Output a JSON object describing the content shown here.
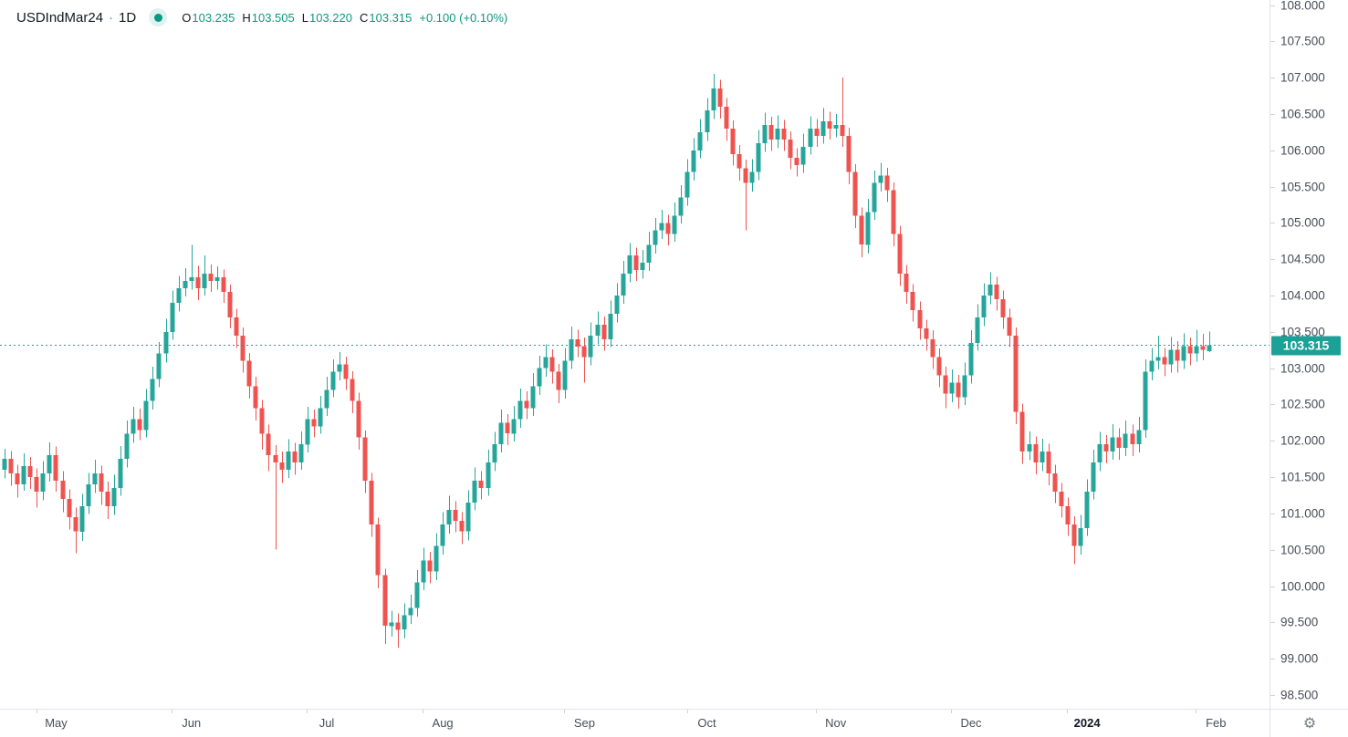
{
  "header": {
    "symbol": "USDIndMar24",
    "separator": "·",
    "timeframe": "1D",
    "ohlc": {
      "o_label": "O",
      "o": "103.235",
      "h_label": "H",
      "h": "103.505",
      "l_label": "L",
      "l": "103.220",
      "c_label": "C",
      "c": "103.315",
      "change": "+0.100 (+0.10%)"
    }
  },
  "colors": {
    "up": "#26a69a",
    "down": "#ef5350",
    "accent_teal_text": "#089981",
    "last_price_bg": "#1ca196",
    "axis_text": "#4a4e59",
    "title_text": "#131722",
    "border": "#e0e3eb"
  },
  "corner": {
    "settings_icon": "⚙"
  },
  "chart_data": {
    "type": "candlestick",
    "symbol": "USDIndMar24",
    "interval": "1D",
    "up_color": "#26a69a",
    "down_color": "#ef5350",
    "grid": "off",
    "ylim": [
      98.31,
      108.07
    ],
    "last_price": 103.315,
    "last_price_label": "103.315",
    "y_ticks": [
      "108.000",
      "107.500",
      "107.000",
      "106.500",
      "106.000",
      "105.500",
      "105.000",
      "104.500",
      "104.000",
      "103.500",
      "103.000",
      "102.500",
      "102.000",
      "101.500",
      "101.000",
      "100.500",
      "100.000",
      "99.500",
      "99.000",
      "98.500"
    ],
    "x_ticks": [
      {
        "label": "May",
        "i": 8,
        "major": false
      },
      {
        "label": "Jun",
        "i": 29,
        "major": false
      },
      {
        "label": "Jul",
        "i": 50,
        "major": false
      },
      {
        "label": "Aug",
        "i": 68,
        "major": false
      },
      {
        "label": "Sep",
        "i": 90,
        "major": false
      },
      {
        "label": "Oct",
        "i": 109,
        "major": false
      },
      {
        "label": "Nov",
        "i": 129,
        "major": false
      },
      {
        "label": "Dec",
        "i": 150,
        "major": false
      },
      {
        "label": "2024",
        "i": 168,
        "major": true
      },
      {
        "label": "Feb",
        "i": 188,
        "major": false
      }
    ],
    "candles": [
      [
        101.6,
        101.89,
        101.48,
        101.75
      ],
      [
        101.75,
        101.86,
        101.38,
        101.55
      ],
      [
        101.55,
        101.67,
        101.22,
        101.4
      ],
      [
        101.4,
        101.83,
        101.31,
        101.65
      ],
      [
        101.65,
        101.78,
        101.34,
        101.5
      ],
      [
        101.5,
        101.62,
        101.08,
        101.3
      ],
      [
        101.3,
        101.72,
        101.18,
        101.55
      ],
      [
        101.55,
        101.98,
        101.44,
        101.8
      ],
      [
        101.8,
        101.92,
        101.3,
        101.45
      ],
      [
        101.45,
        101.58,
        101.02,
        101.2
      ],
      [
        101.2,
        101.33,
        100.78,
        100.95
      ],
      [
        100.95,
        101.08,
        100.45,
        100.75
      ],
      [
        100.75,
        101.27,
        100.62,
        101.1
      ],
      [
        101.1,
        101.56,
        100.99,
        101.4
      ],
      [
        101.4,
        101.74,
        101.28,
        101.55
      ],
      [
        101.55,
        101.66,
        101.12,
        101.3
      ],
      [
        101.3,
        101.44,
        100.92,
        101.1
      ],
      [
        101.1,
        101.53,
        100.98,
        101.35
      ],
      [
        101.35,
        101.93,
        101.24,
        101.75
      ],
      [
        101.75,
        102.28,
        101.63,
        102.1
      ],
      [
        102.1,
        102.47,
        101.97,
        102.3
      ],
      [
        102.3,
        102.44,
        102.01,
        102.15
      ],
      [
        102.15,
        102.71,
        102.05,
        102.55
      ],
      [
        102.55,
        103.02,
        102.43,
        102.85
      ],
      [
        102.85,
        103.36,
        102.74,
        103.2
      ],
      [
        103.2,
        103.68,
        103.08,
        103.5
      ],
      [
        103.5,
        104.07,
        103.39,
        103.9
      ],
      [
        103.9,
        104.27,
        103.78,
        104.1
      ],
      [
        104.1,
        104.38,
        103.99,
        104.2
      ],
      [
        104.2,
        104.7,
        104.08,
        104.25
      ],
      [
        104.25,
        104.41,
        103.94,
        104.1
      ],
      [
        104.1,
        104.55,
        104,
        104.3
      ],
      [
        104.3,
        104.43,
        104.05,
        104.2
      ],
      [
        104.2,
        104.4,
        104.08,
        104.25
      ],
      [
        104.25,
        104.36,
        103.9,
        104.05
      ],
      [
        104.05,
        104.15,
        103.55,
        103.7
      ],
      [
        103.7,
        103.82,
        103.28,
        103.45
      ],
      [
        103.45,
        103.56,
        102.94,
        103.1
      ],
      [
        103.1,
        103.21,
        102.58,
        102.75
      ],
      [
        102.75,
        102.88,
        102.28,
        102.45
      ],
      [
        102.45,
        102.56,
        101.88,
        102.1
      ],
      [
        102.1,
        102.22,
        101.58,
        101.8
      ],
      [
        101.8,
        101.94,
        100.5,
        101.7
      ],
      [
        101.7,
        101.85,
        101.42,
        101.6
      ],
      [
        101.6,
        102.02,
        101.49,
        101.85
      ],
      [
        101.85,
        101.97,
        101.53,
        101.7
      ],
      [
        101.7,
        102.13,
        101.6,
        101.95
      ],
      [
        101.95,
        102.47,
        101.84,
        102.3
      ],
      [
        102.3,
        102.43,
        102.05,
        102.2
      ],
      [
        102.2,
        102.62,
        102.1,
        102.45
      ],
      [
        102.45,
        102.88,
        102.34,
        102.7
      ],
      [
        102.7,
        103.12,
        102.6,
        102.95
      ],
      [
        102.95,
        103.22,
        102.83,
        103.05
      ],
      [
        103.05,
        103.16,
        102.7,
        102.85
      ],
      [
        102.85,
        102.96,
        102.38,
        102.55
      ],
      [
        102.55,
        102.66,
        101.88,
        102.05
      ],
      [
        102.05,
        102.14,
        101.28,
        101.45
      ],
      [
        101.45,
        101.56,
        100.68,
        100.85
      ],
      [
        100.85,
        100.94,
        99.97,
        100.15
      ],
      [
        100.15,
        100.24,
        99.2,
        99.45
      ],
      [
        99.45,
        99.66,
        99.3,
        99.5
      ],
      [
        99.5,
        99.62,
        99.15,
        99.4
      ],
      [
        99.4,
        99.76,
        99.28,
        99.6
      ],
      [
        99.6,
        99.88,
        99.48,
        99.7
      ],
      [
        99.7,
        100.22,
        99.58,
        100.05
      ],
      [
        100.05,
        100.53,
        99.94,
        100.35
      ],
      [
        100.35,
        100.47,
        100.04,
        100.2
      ],
      [
        100.2,
        100.73,
        100.08,
        100.55
      ],
      [
        100.55,
        101.02,
        100.43,
        100.85
      ],
      [
        100.85,
        101.24,
        100.72,
        101.05
      ],
      [
        101.05,
        101.17,
        100.74,
        100.9
      ],
      [
        100.9,
        101.02,
        100.58,
        100.75
      ],
      [
        100.75,
        101.32,
        100.63,
        101.15
      ],
      [
        101.15,
        101.63,
        101.04,
        101.45
      ],
      [
        101.45,
        101.58,
        101.19,
        101.35
      ],
      [
        101.35,
        101.88,
        101.24,
        101.7
      ],
      [
        101.7,
        102.12,
        101.58,
        101.95
      ],
      [
        101.95,
        102.43,
        101.84,
        102.25
      ],
      [
        102.25,
        102.37,
        101.94,
        102.1
      ],
      [
        102.1,
        102.48,
        101.99,
        102.3
      ],
      [
        102.3,
        102.72,
        102.18,
        102.55
      ],
      [
        102.55,
        102.68,
        102.3,
        102.45
      ],
      [
        102.45,
        102.93,
        102.34,
        102.75
      ],
      [
        102.75,
        103.17,
        102.63,
        103
      ],
      [
        103,
        103.33,
        102.88,
        103.15
      ],
      [
        103.15,
        103.26,
        102.79,
        102.95
      ],
      [
        102.95,
        103.06,
        102.52,
        102.7
      ],
      [
        102.7,
        103.28,
        102.58,
        103.1
      ],
      [
        103.1,
        103.57,
        102.99,
        103.4
      ],
      [
        103.4,
        103.53,
        103.15,
        103.3
      ],
      [
        103.3,
        103.42,
        102.8,
        103.15
      ],
      [
        103.15,
        103.63,
        103.04,
        103.45
      ],
      [
        103.45,
        103.78,
        103.33,
        103.6
      ],
      [
        103.6,
        103.71,
        103.24,
        103.4
      ],
      [
        103.4,
        103.93,
        103.29,
        103.75
      ],
      [
        103.75,
        104.17,
        103.63,
        104
      ],
      [
        104,
        104.48,
        103.89,
        104.3
      ],
      [
        104.3,
        104.72,
        104.18,
        104.55
      ],
      [
        104.55,
        104.66,
        104.2,
        104.35
      ],
      [
        104.35,
        104.63,
        104.23,
        104.45
      ],
      [
        104.45,
        104.88,
        104.34,
        104.7
      ],
      [
        104.7,
        105.07,
        104.58,
        104.9
      ],
      [
        104.9,
        105.18,
        104.78,
        105
      ],
      [
        105,
        105.11,
        104.69,
        104.85
      ],
      [
        104.85,
        105.28,
        104.74,
        105.1
      ],
      [
        105.1,
        105.52,
        104.99,
        105.35
      ],
      [
        105.35,
        105.88,
        105.24,
        105.7
      ],
      [
        105.7,
        106.17,
        105.58,
        106
      ],
      [
        106,
        106.43,
        105.89,
        106.25
      ],
      [
        106.25,
        106.72,
        106.13,
        106.55
      ],
      [
        106.55,
        107.05,
        106.43,
        106.85
      ],
      [
        106.85,
        106.97,
        106.44,
        106.6
      ],
      [
        106.6,
        106.72,
        106.13,
        106.3
      ],
      [
        106.3,
        106.41,
        105.79,
        105.95
      ],
      [
        105.95,
        106.07,
        105.58,
        105.75
      ],
      [
        105.75,
        105.87,
        104.9,
        105.55
      ],
      [
        105.55,
        105.88,
        105.43,
        105.7
      ],
      [
        105.7,
        106.28,
        105.59,
        106.1
      ],
      [
        106.1,
        106.52,
        105.98,
        106.35
      ],
      [
        106.35,
        106.46,
        105.99,
        106.15
      ],
      [
        106.15,
        106.48,
        106.03,
        106.3
      ],
      [
        106.3,
        106.42,
        105.99,
        106.15
      ],
      [
        106.15,
        106.26,
        105.74,
        105.9
      ],
      [
        105.9,
        106.03,
        105.64,
        105.8
      ],
      [
        105.8,
        106.23,
        105.69,
        106.05
      ],
      [
        106.05,
        106.47,
        105.94,
        106.3
      ],
      [
        106.3,
        106.43,
        106.05,
        106.2
      ],
      [
        106.2,
        106.58,
        106.09,
        106.4
      ],
      [
        106.4,
        106.53,
        106.15,
        106.3
      ],
      [
        106.3,
        106.5,
        106.18,
        106.35
      ],
      [
        106.35,
        107,
        106.05,
        106.2
      ],
      [
        106.2,
        106.31,
        105.53,
        105.7
      ],
      [
        105.7,
        105.81,
        104.93,
        105.1
      ],
      [
        105.1,
        105.21,
        104.53,
        104.7
      ],
      [
        104.7,
        105.33,
        104.58,
        105.15
      ],
      [
        105.15,
        105.72,
        105.04,
        105.55
      ],
      [
        105.55,
        105.83,
        105.43,
        105.65
      ],
      [
        105.65,
        105.76,
        105.29,
        105.45
      ],
      [
        105.45,
        105.56,
        104.68,
        104.85
      ],
      [
        104.85,
        104.96,
        104.13,
        104.3
      ],
      [
        104.3,
        104.42,
        103.89,
        104.05
      ],
      [
        104.05,
        104.16,
        103.64,
        103.8
      ],
      [
        103.8,
        103.92,
        103.39,
        103.55
      ],
      [
        103.55,
        103.67,
        103.24,
        103.4
      ],
      [
        103.4,
        103.52,
        102.99,
        103.15
      ],
      [
        103.15,
        103.27,
        102.74,
        102.9
      ],
      [
        102.9,
        103.02,
        102.45,
        102.65
      ],
      [
        102.65,
        102.98,
        102.53,
        102.8
      ],
      [
        102.8,
        102.91,
        102.44,
        102.6
      ],
      [
        102.6,
        103.08,
        102.49,
        102.9
      ],
      [
        102.9,
        103.52,
        102.79,
        103.35
      ],
      [
        103.35,
        103.88,
        103.24,
        103.7
      ],
      [
        103.7,
        104.17,
        103.58,
        104
      ],
      [
        104,
        104.32,
        103.88,
        104.15
      ],
      [
        104.15,
        104.26,
        103.79,
        103.95
      ],
      [
        103.95,
        104.07,
        103.54,
        103.7
      ],
      [
        103.7,
        103.82,
        103.29,
        103.45
      ],
      [
        103.45,
        103.56,
        102.23,
        102.4
      ],
      [
        102.4,
        102.51,
        101.68,
        101.85
      ],
      [
        101.85,
        102.13,
        101.73,
        101.95
      ],
      [
        101.95,
        102.06,
        101.54,
        101.7
      ],
      [
        101.7,
        102.03,
        101.58,
        101.85
      ],
      [
        101.85,
        101.96,
        101.39,
        101.55
      ],
      [
        101.55,
        101.67,
        101.14,
        101.3
      ],
      [
        101.3,
        101.42,
        100.94,
        101.1
      ],
      [
        101.1,
        101.22,
        100.69,
        100.85
      ],
      [
        100.85,
        100.96,
        100.3,
        100.55
      ],
      [
        100.55,
        100.98,
        100.43,
        100.8
      ],
      [
        100.8,
        101.47,
        100.69,
        101.3
      ],
      [
        101.3,
        101.88,
        101.19,
        101.7
      ],
      [
        101.7,
        102.12,
        101.58,
        101.95
      ],
      [
        101.95,
        102.08,
        101.69,
        101.85
      ],
      [
        101.85,
        102.23,
        101.74,
        102.05
      ],
      [
        102.05,
        102.17,
        101.74,
        101.9
      ],
      [
        101.9,
        102.28,
        101.79,
        102.1
      ],
      [
        102.1,
        102.22,
        101.79,
        101.95
      ],
      [
        101.95,
        102.33,
        101.84,
        102.15
      ],
      [
        102.15,
        103.12,
        102.04,
        102.95
      ],
      [
        102.95,
        103.28,
        102.83,
        103.1
      ],
      [
        103.1,
        103.45,
        102.98,
        103.15
      ],
      [
        103.15,
        103.28,
        102.89,
        103.05
      ],
      [
        103.05,
        103.43,
        102.94,
        103.25
      ],
      [
        103.25,
        103.37,
        102.94,
        103.1
      ],
      [
        103.1,
        103.48,
        102.99,
        103.3
      ],
      [
        103.3,
        103.42,
        103.04,
        103.2
      ],
      [
        103.2,
        103.53,
        103.09,
        103.3
      ],
      [
        103.3,
        103.47,
        103.11,
        103.25
      ],
      [
        103.235,
        103.505,
        103.22,
        103.315
      ]
    ]
  }
}
